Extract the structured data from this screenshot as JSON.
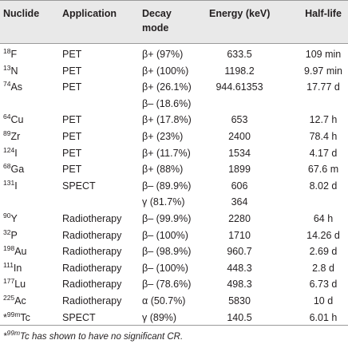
{
  "header": {
    "nuclide": "Nuclide",
    "application": "Application",
    "decay": [
      "Decay",
      "mode"
    ],
    "energy": "Energy (keV)",
    "half_life": "Half-life"
  },
  "rows": [
    {
      "nuclide": {
        "mass": "18",
        "symbol": "F"
      },
      "application": "PET",
      "decay": "β+ (97%)",
      "energy": "633.5",
      "half_life": "109 min"
    },
    {
      "nuclide": {
        "mass": "13",
        "symbol": "N"
      },
      "application": "PET",
      "decay": "β+ (100%)",
      "energy": "1198.2",
      "half_life": "9.97 min"
    },
    {
      "nuclide": {
        "mass": "74",
        "symbol": "As"
      },
      "application": "PET",
      "decay": "β+ (26.1%)",
      "energy": "944.61353",
      "half_life": "17.77 d"
    },
    {
      "decay": "β– (18.6%)"
    },
    {
      "nuclide": {
        "mass": "64",
        "symbol": "Cu"
      },
      "application": "PET",
      "decay": "β+ (17.8%)",
      "energy": "653",
      "half_life": "12.7 h"
    },
    {
      "nuclide": {
        "mass": "89",
        "symbol": "Zr"
      },
      "application": "PET",
      "decay": "β+ (23%)",
      "energy": "2400",
      "half_life": "78.4 h"
    },
    {
      "nuclide": {
        "mass": "124",
        "symbol": "I"
      },
      "application": "PET",
      "decay": "β+ (11.7%)",
      "energy": "1534",
      "half_life": "4.17 d"
    },
    {
      "nuclide": {
        "mass": "68",
        "symbol": "Ga"
      },
      "application": "PET",
      "decay": "β+ (88%)",
      "energy": "1899",
      "half_life": "67.6 m"
    },
    {
      "nuclide": {
        "mass": "131",
        "symbol": "I"
      },
      "application": "SPECT",
      "decay": "β– (89.9%)",
      "energy": "606",
      "half_life": "8.02 d"
    },
    {
      "decay": "γ (81.7%)",
      "energy": "364"
    },
    {
      "nuclide": {
        "mass": "90",
        "symbol": "Y"
      },
      "application": "Radiotherapy",
      "decay": "β– (99.9%)",
      "energy": "2280",
      "half_life": "64 h"
    },
    {
      "nuclide": {
        "mass": "32",
        "symbol": "P"
      },
      "application": "Radiotherapy",
      "decay": "β– (100%)",
      "energy": "1710",
      "half_life": "14.26 d"
    },
    {
      "nuclide": {
        "mass": "198",
        "symbol": "Au"
      },
      "application": "Radiotherapy",
      "decay": "β– (98.9%)",
      "energy": "960.7",
      "half_life": "2.69 d"
    },
    {
      "nuclide": {
        "mass": "111",
        "symbol": "In"
      },
      "application": "Radiotherapy",
      "decay": "β– (100%)",
      "energy": "448.3",
      "half_life": "2.8 d"
    },
    {
      "nuclide": {
        "mass": "177",
        "symbol": "Lu"
      },
      "application": "Radiotherapy",
      "decay": "β– (78.6%)",
      "energy": "498.3",
      "half_life": "6.73 d"
    },
    {
      "nuclide": {
        "mass": "225",
        "symbol": "Ac"
      },
      "application": "Radiotherapy",
      "decay": "α (50.7%)",
      "energy": "5830",
      "half_life": "10 d"
    },
    {
      "nuclide": {
        "prefix": "*",
        "mass": "99m",
        "symbol": "Tc"
      },
      "application": "SPECT",
      "decay": "γ (89%)",
      "energy": "140.5",
      "half_life": "6.01 h"
    }
  ],
  "footnote": {
    "marker": "*",
    "mass": "99m",
    "symbol": "Tc",
    "text": " has shown to have no significant CR."
  }
}
